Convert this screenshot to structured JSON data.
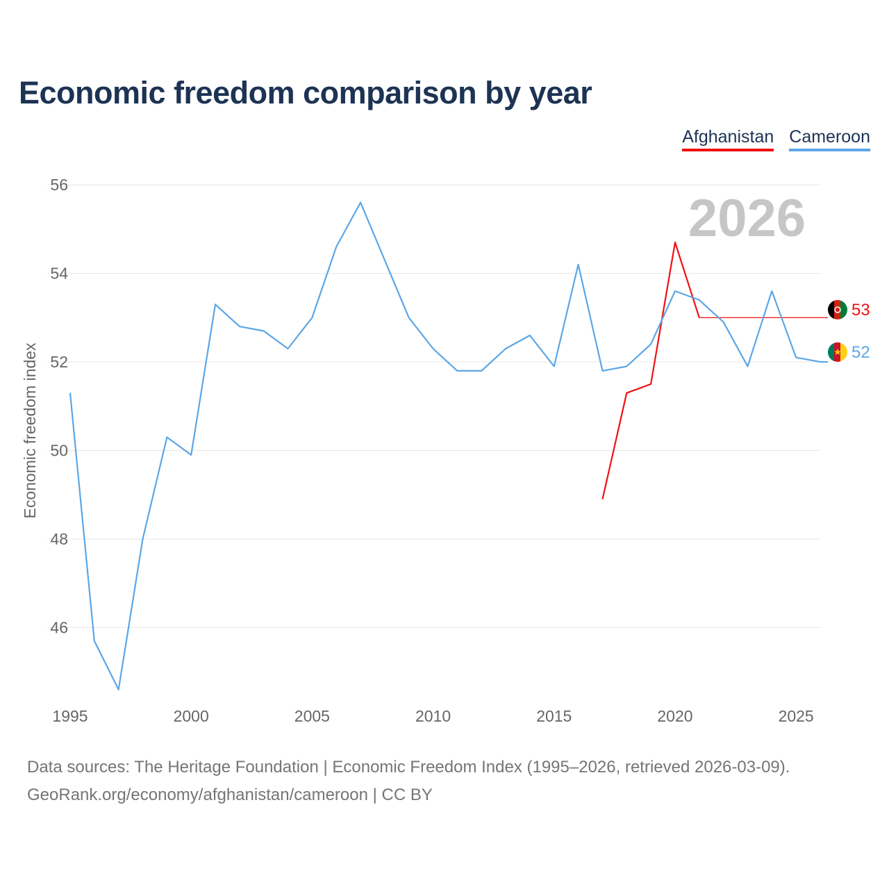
{
  "chart_data": {
    "type": "line",
    "title": "Economic freedom comparison by year",
    "ylabel": "Economic freedom index",
    "xlabel": "",
    "xlim": [
      1995,
      2026
    ],
    "ylim": [
      44.3,
      56.3
    ],
    "yticks": [
      46,
      48,
      50,
      52,
      54,
      56
    ],
    "xticks": [
      1995,
      2000,
      2005,
      2010,
      2015,
      2020,
      2025
    ],
    "year_label": "2026",
    "grid": true,
    "legend": "top-right",
    "series": [
      {
        "name": "Afghanistan",
        "color": "#ee1111",
        "x": [
          2017,
          2018,
          2019,
          2020,
          2021
        ],
        "y": [
          48.9,
          51.3,
          51.5,
          54.7,
          53.0
        ],
        "end_year": 2026,
        "end_value": 53.0,
        "end_label": "53",
        "flag_icon": "afghanistan-flag-icon"
      },
      {
        "name": "Cameroon",
        "color": "#5ba6e6",
        "x": [
          1995,
          1996,
          1997,
          1998,
          1999,
          2000,
          2001,
          2002,
          2003,
          2004,
          2005,
          2006,
          2007,
          2008,
          2009,
          2010,
          2011,
          2012,
          2013,
          2014,
          2015,
          2016,
          2017,
          2018,
          2019,
          2020,
          2021,
          2022,
          2023,
          2024,
          2025,
          2026
        ],
        "y": [
          51.3,
          45.7,
          44.6,
          48.0,
          50.3,
          49.9,
          53.3,
          52.8,
          52.7,
          52.3,
          53.0,
          54.6,
          55.6,
          54.3,
          53.0,
          52.3,
          51.8,
          51.8,
          52.3,
          52.6,
          51.9,
          54.2,
          51.8,
          51.9,
          52.4,
          53.6,
          53.4,
          52.9,
          51.9,
          53.6,
          52.1,
          52.0
        ],
        "end_year": 2026,
        "end_value": 52.0,
        "end_label": "52",
        "flag_icon": "cameroon-flag-icon"
      }
    ]
  },
  "footer": {
    "sources": "Data sources: The Heritage Foundation | Economic Freedom Index (1995–2026, retrieved 2026-03-09).",
    "credit": "GeoRank.org/economy/afghanistan/cameroon | CC BY"
  }
}
